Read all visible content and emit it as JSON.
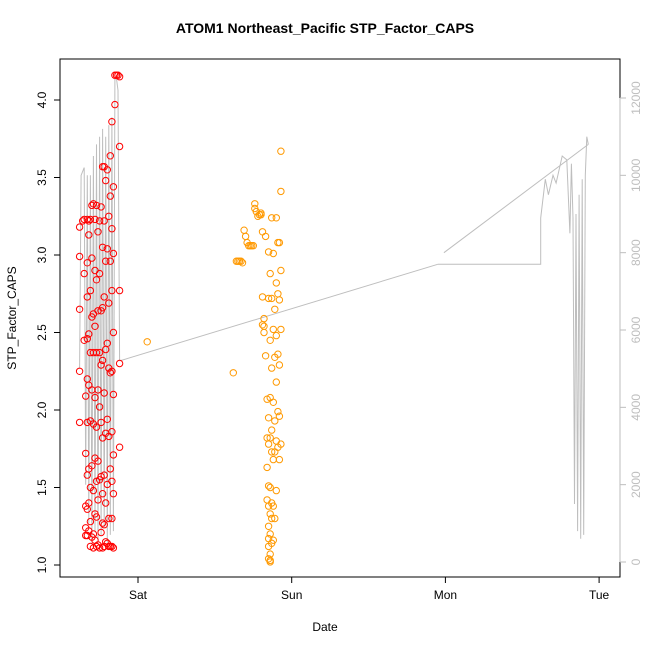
{
  "chart_data": {
    "type": "scatter",
    "title": "ATOM1 Northeast_Pacific STP_Factor_CAPS",
    "xlabel": "Date",
    "ylabel": "STP_Factor_CAPS",
    "x_ticks": [
      "Sat",
      "Sun",
      "Mon",
      "Tue"
    ],
    "ylim": [
      1.0,
      4.2
    ],
    "y_ticks": [
      1.0,
      1.5,
      2.0,
      2.5,
      3.0,
      3.5,
      4.0
    ],
    "y2lim": [
      0,
      12500
    ],
    "y2_ticks": [
      0,
      2000,
      4000,
      6000,
      8000,
      10000,
      12000
    ],
    "xlim": [
      -0.65,
      3.1
    ],
    "colors": {
      "series1": "#ff0000",
      "series2": "#ff9900",
      "line": "#bebebe"
    },
    "series": [
      {
        "color": "#ff0000",
        "points": [
          [
            -0.38,
            3.18
          ],
          [
            -0.38,
            2.99
          ],
          [
            -0.38,
            2.65
          ],
          [
            -0.38,
            2.25
          ],
          [
            -0.38,
            1.92
          ],
          [
            -0.36,
            3.22
          ],
          [
            -0.35,
            3.23
          ],
          [
            -0.35,
            2.88
          ],
          [
            -0.35,
            2.45
          ],
          [
            -0.34,
            2.09
          ],
          [
            -0.34,
            1.72
          ],
          [
            -0.34,
            1.38
          ],
          [
            -0.34,
            1.24
          ],
          [
            -0.34,
            1.19
          ],
          [
            -0.33,
            3.23
          ],
          [
            -0.33,
            2.95
          ],
          [
            -0.33,
            2.73
          ],
          [
            -0.33,
            2.46
          ],
          [
            -0.33,
            2.2
          ],
          [
            -0.33,
            1.92
          ],
          [
            -0.33,
            1.58
          ],
          [
            -0.33,
            1.36
          ],
          [
            -0.33,
            1.19
          ],
          [
            -0.32,
            3.22
          ],
          [
            -0.32,
            3.13
          ],
          [
            -0.32,
            2.49
          ],
          [
            -0.32,
            2.16
          ],
          [
            -0.32,
            1.62
          ],
          [
            -0.32,
            1.4
          ],
          [
            -0.32,
            1.22
          ],
          [
            -0.31,
            3.23
          ],
          [
            -0.31,
            2.77
          ],
          [
            -0.31,
            2.37
          ],
          [
            -0.31,
            1.93
          ],
          [
            -0.31,
            1.5
          ],
          [
            -0.31,
            1.28
          ],
          [
            -0.31,
            1.12
          ],
          [
            -0.3,
            3.32
          ],
          [
            -0.3,
            2.98
          ],
          [
            -0.3,
            2.6
          ],
          [
            -0.3,
            2.13
          ],
          [
            -0.3,
            1.64
          ],
          [
            -0.3,
            1.18
          ],
          [
            -0.29,
            3.33
          ],
          [
            -0.29,
            2.62
          ],
          [
            -0.29,
            2.37
          ],
          [
            -0.29,
            1.91
          ],
          [
            -0.29,
            1.48
          ],
          [
            -0.29,
            1.2
          ],
          [
            -0.29,
            1.11
          ],
          [
            -0.28,
            3.23
          ],
          [
            -0.28,
            2.9
          ],
          [
            -0.28,
            2.54
          ],
          [
            -0.28,
            2.08
          ],
          [
            -0.28,
            1.69
          ],
          [
            -0.28,
            1.33
          ],
          [
            -0.28,
            1.16
          ],
          [
            -0.27,
            3.32
          ],
          [
            -0.27,
            2.84
          ],
          [
            -0.27,
            2.37
          ],
          [
            -0.27,
            1.89
          ],
          [
            -0.27,
            1.54
          ],
          [
            -0.27,
            1.31
          ],
          [
            -0.27,
            1.12
          ],
          [
            -0.26,
            3.15
          ],
          [
            -0.26,
            2.64
          ],
          [
            -0.26,
            2.13
          ],
          [
            -0.26,
            1.67
          ],
          [
            -0.26,
            1.42
          ],
          [
            -0.26,
            1.13
          ],
          [
            -0.25,
            3.22
          ],
          [
            -0.25,
            2.88
          ],
          [
            -0.25,
            2.37
          ],
          [
            -0.25,
            2.02
          ],
          [
            -0.25,
            1.55
          ],
          [
            -0.25,
            1.11
          ],
          [
            -0.24,
            3.31
          ],
          [
            -0.24,
            2.64
          ],
          [
            -0.24,
            2.29
          ],
          [
            -0.24,
            1.92
          ],
          [
            -0.24,
            1.57
          ],
          [
            -0.24,
            1.21
          ],
          [
            -0.23,
            3.57
          ],
          [
            -0.23,
            3.05
          ],
          [
            -0.23,
            2.66
          ],
          [
            -0.23,
            2.32
          ],
          [
            -0.23,
            1.82
          ],
          [
            -0.23,
            1.46
          ],
          [
            -0.23,
            1.27
          ],
          [
            -0.23,
            1.11
          ],
          [
            -0.22,
            3.57
          ],
          [
            -0.22,
            3.22
          ],
          [
            -0.22,
            2.73
          ],
          [
            -0.22,
            2.11
          ],
          [
            -0.22,
            1.58
          ],
          [
            -0.22,
            1.26
          ],
          [
            -0.22,
            1.12
          ],
          [
            -0.21,
            3.48
          ],
          [
            -0.21,
            2.96
          ],
          [
            -0.21,
            2.39
          ],
          [
            -0.21,
            1.85
          ],
          [
            -0.21,
            1.4
          ],
          [
            -0.21,
            1.15
          ],
          [
            -0.2,
            3.55
          ],
          [
            -0.2,
            3.04
          ],
          [
            -0.2,
            2.43
          ],
          [
            -0.2,
            1.94
          ],
          [
            -0.2,
            1.52
          ],
          [
            -0.2,
            1.14
          ],
          [
            -0.19,
            3.25
          ],
          [
            -0.19,
            2.69
          ],
          [
            -0.19,
            2.27
          ],
          [
            -0.19,
            1.83
          ],
          [
            -0.19,
            1.3
          ],
          [
            -0.19,
            1.12
          ],
          [
            -0.18,
            3.64
          ],
          [
            -0.18,
            3.38
          ],
          [
            -0.18,
            2.96
          ],
          [
            -0.18,
            2.24
          ],
          [
            -0.18,
            1.62
          ],
          [
            -0.18,
            1.12
          ],
          [
            -0.17,
            3.86
          ],
          [
            -0.17,
            3.17
          ],
          [
            -0.17,
            2.77
          ],
          [
            -0.17,
            2.25
          ],
          [
            -0.17,
            1.86
          ],
          [
            -0.17,
            1.54
          ],
          [
            -0.17,
            1.3
          ],
          [
            -0.17,
            1.12
          ],
          [
            -0.16,
            3.44
          ],
          [
            -0.16,
            3.01
          ],
          [
            -0.16,
            2.5
          ],
          [
            -0.16,
            2.1
          ],
          [
            -0.16,
            1.71
          ],
          [
            -0.16,
            1.46
          ],
          [
            -0.16,
            1.11
          ],
          [
            -0.15,
            3.97
          ],
          [
            -0.15,
            4.16
          ],
          [
            -0.14,
            4.16
          ],
          [
            -0.13,
            4.16
          ],
          [
            -0.12,
            4.15
          ],
          [
            -0.12,
            3.7
          ],
          [
            -0.12,
            2.77
          ],
          [
            -0.12,
            2.3
          ],
          [
            -0.12,
            1.76
          ]
        ]
      },
      {
        "color": "#ff9900",
        "points": [
          [
            0.06,
            2.44
          ],
          [
            0.62,
            2.24
          ],
          [
            0.64,
            2.96
          ],
          [
            0.65,
            2.96
          ],
          [
            0.66,
            2.96
          ],
          [
            0.67,
            2.96
          ],
          [
            0.68,
            2.95
          ],
          [
            0.69,
            3.16
          ],
          [
            0.7,
            3.12
          ],
          [
            0.71,
            3.08
          ],
          [
            0.72,
            3.06
          ],
          [
            0.73,
            3.06
          ],
          [
            0.74,
            3.06
          ],
          [
            0.75,
            3.06
          ],
          [
            0.76,
            3.33
          ],
          [
            0.76,
            3.3
          ],
          [
            0.77,
            3.28
          ],
          [
            0.78,
            3.25
          ],
          [
            0.79,
            3.26
          ],
          [
            0.8,
            3.26
          ],
          [
            0.8,
            3.27
          ],
          [
            0.81,
            3.15
          ],
          [
            0.81,
            2.73
          ],
          [
            0.81,
            2.55
          ],
          [
            0.82,
            2.59
          ],
          [
            0.82,
            2.54
          ],
          [
            0.82,
            2.5
          ],
          [
            0.83,
            3.12
          ],
          [
            0.83,
            2.35
          ],
          [
            0.84,
            2.07
          ],
          [
            0.84,
            1.82
          ],
          [
            0.84,
            1.63
          ],
          [
            0.84,
            1.42
          ],
          [
            0.85,
            3.02
          ],
          [
            0.85,
            2.72
          ],
          [
            0.85,
            1.95
          ],
          [
            0.85,
            1.78
          ],
          [
            0.85,
            1.51
          ],
          [
            0.85,
            1.38
          ],
          [
            0.85,
            1.25
          ],
          [
            0.85,
            1.17
          ],
          [
            0.85,
            1.12
          ],
          [
            0.85,
            1.04
          ],
          [
            0.86,
            2.88
          ],
          [
            0.86,
            2.45
          ],
          [
            0.86,
            2.08
          ],
          [
            0.86,
            1.82
          ],
          [
            0.86,
            1.5
          ],
          [
            0.86,
            1.33
          ],
          [
            0.86,
            1.2
          ],
          [
            0.86,
            1.07
          ],
          [
            0.86,
            1.03
          ],
          [
            0.86,
            1.02
          ],
          [
            0.87,
            3.24
          ],
          [
            0.87,
            2.72
          ],
          [
            0.87,
            2.27
          ],
          [
            0.87,
            1.87
          ],
          [
            0.87,
            1.73
          ],
          [
            0.87,
            1.4
          ],
          [
            0.87,
            1.3
          ],
          [
            0.87,
            1.14
          ],
          [
            0.88,
            3.01
          ],
          [
            0.88,
            2.52
          ],
          [
            0.88,
            2.05
          ],
          [
            0.88,
            1.68
          ],
          [
            0.88,
            1.38
          ],
          [
            0.88,
            1.16
          ],
          [
            0.89,
            2.65
          ],
          [
            0.89,
            2.34
          ],
          [
            0.89,
            1.93
          ],
          [
            0.89,
            1.73
          ],
          [
            0.89,
            1.3
          ],
          [
            0.9,
            3.24
          ],
          [
            0.9,
            2.82
          ],
          [
            0.9,
            2.48
          ],
          [
            0.9,
            2.18
          ],
          [
            0.9,
            1.8
          ],
          [
            0.9,
            1.48
          ],
          [
            0.91,
            3.08
          ],
          [
            0.91,
            2.75
          ],
          [
            0.91,
            2.36
          ],
          [
            0.91,
            1.99
          ],
          [
            0.91,
            1.76
          ],
          [
            0.92,
            3.08
          ],
          [
            0.92,
            2.71
          ],
          [
            0.92,
            2.29
          ],
          [
            0.92,
            1.96
          ],
          [
            0.92,
            1.68
          ],
          [
            0.93,
            3.67
          ],
          [
            0.93,
            3.41
          ],
          [
            0.93,
            2.9
          ],
          [
            0.93,
            2.52
          ],
          [
            0.93,
            1.78
          ]
        ]
      }
    ],
    "secondary_line": {
      "color": "#bebebe",
      "points": [
        [
          -0.38,
          5000
        ],
        [
          -0.37,
          10000
        ],
        [
          -0.35,
          10200
        ],
        [
          -0.34,
          2000
        ],
        [
          -0.33,
          10000
        ],
        [
          -0.32,
          1000
        ],
        [
          -0.31,
          10000
        ],
        [
          -0.3,
          500
        ],
        [
          -0.29,
          10500
        ],
        [
          -0.28,
          800
        ],
        [
          -0.27,
          10800
        ],
        [
          -0.26,
          600
        ],
        [
          -0.25,
          11000
        ],
        [
          -0.24,
          700
        ],
        [
          -0.23,
          11200
        ],
        [
          -0.22,
          900
        ],
        [
          -0.21,
          11000
        ],
        [
          -0.2,
          500
        ],
        [
          -0.19,
          11300
        ],
        [
          -0.18,
          700
        ],
        [
          -0.17,
          11500
        ],
        [
          -0.16,
          800
        ],
        [
          -0.15,
          12500
        ],
        [
          -0.14,
          12500
        ],
        [
          -0.13,
          12200
        ],
        [
          -0.12,
          5200
        ],
        [
          1.95,
          7700
        ],
        [
          2.62,
          7700
        ],
        [
          2.62,
          8900
        ],
        [
          2.65,
          9900
        ],
        [
          2.67,
          9500
        ],
        [
          2.7,
          10000
        ],
        [
          2.72,
          9800
        ],
        [
          2.76,
          10500
        ],
        [
          2.79,
          10400
        ],
        [
          2.81,
          8500
        ],
        [
          2.82,
          10300
        ],
        [
          2.83,
          8900
        ],
        [
          2.84,
          1500
        ],
        [
          2.85,
          9000
        ],
        [
          2.86,
          800
        ],
        [
          2.87,
          9500
        ],
        [
          2.88,
          600
        ],
        [
          2.89,
          9900
        ],
        [
          2.9,
          700
        ],
        [
          2.91,
          10000
        ],
        [
          2.92,
          11000
        ],
        [
          2.93,
          10800
        ]
      ],
      "segment2": [
        [
          1.99,
          8000
        ],
        [
          2.93,
          10800
        ]
      ]
    }
  }
}
